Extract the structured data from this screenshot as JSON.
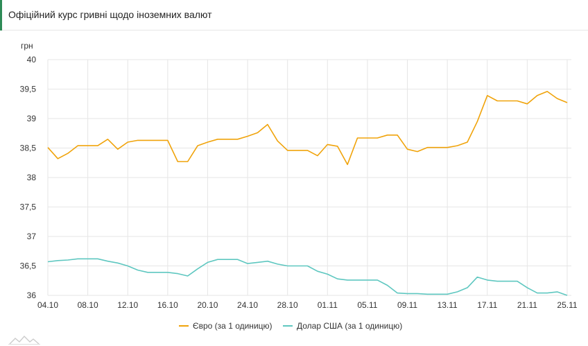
{
  "header": {
    "title": "Офіційний курс гривні щодо іноземних валют"
  },
  "chart_data": {
    "type": "line",
    "ylabel": "грн",
    "ylim": [
      36,
      40
    ],
    "yticks": [
      "36",
      "36,5",
      "37",
      "37,5",
      "38",
      "38,5",
      "39",
      "39,5",
      "40"
    ],
    "xticks": [
      "04.10",
      "08.10",
      "12.10",
      "16.10",
      "20.10",
      "24.10",
      "28.10",
      "01.11",
      "05.11",
      "09.11",
      "13.11",
      "17.11",
      "21.11",
      "25.11"
    ],
    "x_start": "2021-10-04",
    "x_end": "2021-11-25",
    "grid": true,
    "legend_position": "bottom",
    "series": [
      {
        "name": "Євро (за 1 одиницю)",
        "color": "#f0a30a",
        "points": [
          [
            "2021-10-04",
            38.51
          ],
          [
            "2021-10-05",
            38.32
          ],
          [
            "2021-10-06",
            38.41
          ],
          [
            "2021-10-07",
            38.54
          ],
          [
            "2021-10-08",
            38.54
          ],
          [
            "2021-10-09",
            38.54
          ],
          [
            "2021-10-10",
            38.65
          ],
          [
            "2021-10-11",
            38.48
          ],
          [
            "2021-10-12",
            38.6
          ],
          [
            "2021-10-13",
            38.63
          ],
          [
            "2021-10-14",
            38.63
          ],
          [
            "2021-10-15",
            38.63
          ],
          [
            "2021-10-16",
            38.63
          ],
          [
            "2021-10-17",
            38.27
          ],
          [
            "2021-10-18",
            38.27
          ],
          [
            "2021-10-19",
            38.54
          ],
          [
            "2021-10-20",
            38.6
          ],
          [
            "2021-10-21",
            38.65
          ],
          [
            "2021-10-22",
            38.65
          ],
          [
            "2021-10-23",
            38.65
          ],
          [
            "2021-10-24",
            38.7
          ],
          [
            "2021-10-25",
            38.76
          ],
          [
            "2021-10-26",
            38.9
          ],
          [
            "2021-10-27",
            38.62
          ],
          [
            "2021-10-28",
            38.46
          ],
          [
            "2021-10-29",
            38.46
          ],
          [
            "2021-10-30",
            38.46
          ],
          [
            "2021-10-31",
            38.37
          ],
          [
            "2021-11-01",
            38.56
          ],
          [
            "2021-11-02",
            38.53
          ],
          [
            "2021-11-03",
            38.22
          ],
          [
            "2021-11-04",
            38.67
          ],
          [
            "2021-11-05",
            38.67
          ],
          [
            "2021-11-06",
            38.67
          ],
          [
            "2021-11-07",
            38.72
          ],
          [
            "2021-11-08",
            38.72
          ],
          [
            "2021-11-09",
            38.48
          ],
          [
            "2021-11-10",
            38.44
          ],
          [
            "2021-11-11",
            38.51
          ],
          [
            "2021-11-12",
            38.51
          ],
          [
            "2021-11-13",
            38.51
          ],
          [
            "2021-11-14",
            38.54
          ],
          [
            "2021-11-15",
            38.6
          ],
          [
            "2021-11-16",
            38.95
          ],
          [
            "2021-11-17",
            39.39
          ],
          [
            "2021-11-18",
            39.3
          ],
          [
            "2021-11-19",
            39.3
          ],
          [
            "2021-11-20",
            39.3
          ],
          [
            "2021-11-21",
            39.25
          ],
          [
            "2021-11-22",
            39.39
          ],
          [
            "2021-11-23",
            39.46
          ],
          [
            "2021-11-24",
            39.34
          ],
          [
            "2021-11-25",
            39.27
          ]
        ]
      },
      {
        "name": "Долар США (за 1 одиницю)",
        "color": "#5ec7c0",
        "points": [
          [
            "2021-10-04",
            36.57
          ],
          [
            "2021-10-05",
            36.59
          ],
          [
            "2021-10-06",
            36.6
          ],
          [
            "2021-10-07",
            36.62
          ],
          [
            "2021-10-08",
            36.62
          ],
          [
            "2021-10-09",
            36.62
          ],
          [
            "2021-10-10",
            36.58
          ],
          [
            "2021-10-11",
            36.55
          ],
          [
            "2021-10-12",
            36.5
          ],
          [
            "2021-10-13",
            36.43
          ],
          [
            "2021-10-14",
            36.39
          ],
          [
            "2021-10-15",
            36.39
          ],
          [
            "2021-10-16",
            36.39
          ],
          [
            "2021-10-17",
            36.37
          ],
          [
            "2021-10-18",
            36.33
          ],
          [
            "2021-10-19",
            36.45
          ],
          [
            "2021-10-20",
            36.56
          ],
          [
            "2021-10-21",
            36.61
          ],
          [
            "2021-10-22",
            36.61
          ],
          [
            "2021-10-23",
            36.61
          ],
          [
            "2021-10-24",
            36.54
          ],
          [
            "2021-10-25",
            36.56
          ],
          [
            "2021-10-26",
            36.58
          ],
          [
            "2021-10-27",
            36.53
          ],
          [
            "2021-10-28",
            36.5
          ],
          [
            "2021-10-29",
            36.5
          ],
          [
            "2021-10-30",
            36.5
          ],
          [
            "2021-10-31",
            36.41
          ],
          [
            "2021-11-01",
            36.36
          ],
          [
            "2021-11-02",
            36.28
          ],
          [
            "2021-11-03",
            36.26
          ],
          [
            "2021-11-04",
            36.26
          ],
          [
            "2021-11-05",
            36.26
          ],
          [
            "2021-11-06",
            36.26
          ],
          [
            "2021-11-07",
            36.17
          ],
          [
            "2021-11-08",
            36.04
          ],
          [
            "2021-11-09",
            36.03
          ],
          [
            "2021-11-10",
            36.03
          ],
          [
            "2021-11-11",
            36.02
          ],
          [
            "2021-11-12",
            36.02
          ],
          [
            "2021-11-13",
            36.02
          ],
          [
            "2021-11-14",
            36.06
          ],
          [
            "2021-11-15",
            36.13
          ],
          [
            "2021-11-16",
            36.31
          ],
          [
            "2021-11-17",
            36.26
          ],
          [
            "2021-11-18",
            36.24
          ],
          [
            "2021-11-19",
            36.24
          ],
          [
            "2021-11-20",
            36.24
          ],
          [
            "2021-11-21",
            36.13
          ],
          [
            "2021-11-22",
            36.04
          ],
          [
            "2021-11-23",
            36.04
          ],
          [
            "2021-11-24",
            36.06
          ],
          [
            "2021-11-25",
            36.0
          ]
        ]
      }
    ]
  }
}
